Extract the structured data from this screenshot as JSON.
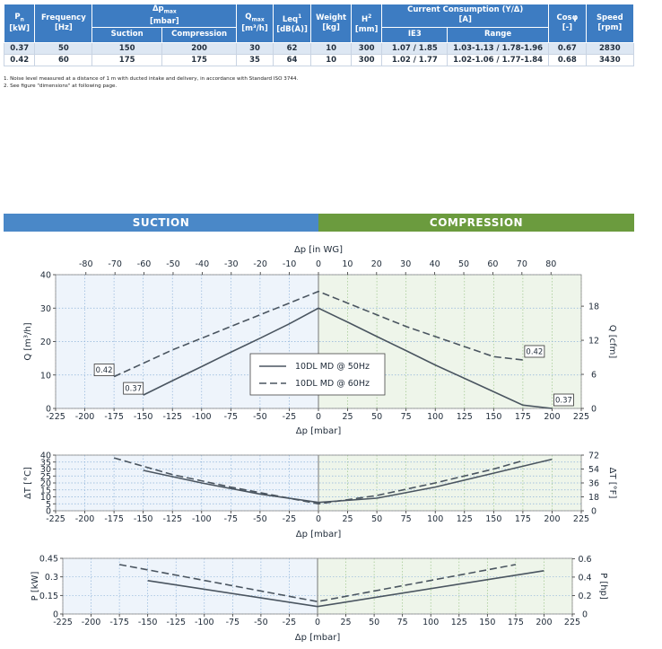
{
  "table": {
    "headers": {
      "pn": "P",
      "pn_sub": "n",
      "pn_unit": "[kW]",
      "frequency": "Frequency",
      "frequency_unit": "[Hz]",
      "dp": "Δp",
      "dp_sub": "max",
      "dp_unit": "[mbar]",
      "suction": "Suction",
      "compression": "Compression",
      "q": "Q",
      "q_sub": "max",
      "q_unit": "[m³/h]",
      "leq": "Leq",
      "leq_sup": "1",
      "leq_unit": "[dB(A)]",
      "weight": "Weight",
      "weight_unit": "[kg]",
      "h": "H",
      "h_sup": "2",
      "h_unit": "[mm]",
      "current": "Current Consumption (Y/Δ)",
      "current_unit": "[A]",
      "ie3": "IE3",
      "range": "Range",
      "cos": "Cosφ",
      "cos_unit": "[-]",
      "speed": "Speed",
      "speed_unit": "[rpm]"
    },
    "rows": [
      [
        "0.37",
        "50",
        "150",
        "200",
        "30",
        "62",
        "10",
        "300",
        "1.07 / 1.85",
        "1.03-1.13 / 1.78-1.96",
        "0.67",
        "2830"
      ],
      [
        "0.42",
        "60",
        "175",
        "175",
        "35",
        "64",
        "10",
        "300",
        "1.02 / 1.77",
        "1.02-1.06 / 1.77-1.84",
        "0.68",
        "3430"
      ]
    ]
  },
  "notes": [
    "1.   Noise level measured at a distance of 1 m with ducted intake and delivery, in accordance with Standard ISO 3744.",
    "2.   See figure \"dimensions\" at following page."
  ],
  "banner": {
    "suction": "SUCTION",
    "compression": "COMPRESSION"
  },
  "colors": {
    "suction_bg": "#eef4fb",
    "compression_bg": "#eef5ea",
    "curve": "#4a5560",
    "grid": "#8fb3d9",
    "grid_green": "#9cc58a"
  },
  "legend": {
    "solid": "10DL MD @ 50Hz",
    "dashed": "10DL MD @ 60Hz"
  },
  "chart_data": [
    {
      "type": "line",
      "xlabel": "Δp [mbar]",
      "x2label": "Δp [in WG]",
      "ylabel": "Q [m³/h]",
      "y2label": "Q [cfm]",
      "xlim": [
        -225,
        225
      ],
      "xticks": [
        -225,
        -200,
        -175,
        -150,
        -125,
        -100,
        -75,
        -50,
        -25,
        0,
        25,
        50,
        75,
        100,
        125,
        150,
        175,
        200,
        225
      ],
      "x2ticks": [
        -80,
        -70,
        -60,
        -50,
        -40,
        -30,
        -20,
        -10,
        0,
        10,
        20,
        30,
        40,
        50,
        60,
        70,
        80
      ],
      "ylim": [
        0,
        40
      ],
      "yticks": [
        0,
        10,
        20,
        30,
        40
      ],
      "y2ticks": [
        0,
        6,
        12,
        18
      ],
      "y2_per_y": 0.5886,
      "series": [
        {
          "name": "10DL MD @ 50Hz",
          "style": "solid",
          "x": [
            -150,
            -125,
            -100,
            -75,
            -50,
            -25,
            0,
            25,
            50,
            75,
            100,
            125,
            150,
            175,
            200
          ],
          "y": [
            4,
            8.3,
            12.5,
            16.8,
            21,
            25.3,
            30,
            25.8,
            21.5,
            17.3,
            13,
            9,
            5,
            1,
            0
          ],
          "labels": [
            {
              "x": -150,
              "y": 4,
              "text": "0.37"
            },
            {
              "x": 200,
              "y": 0,
              "text": "0.37"
            }
          ]
        },
        {
          "name": "10DL MD @ 60Hz",
          "style": "dashed",
          "x": [
            -175,
            -150,
            -125,
            -100,
            -75,
            -50,
            -25,
            0,
            25,
            50,
            75,
            100,
            125,
            150,
            175
          ],
          "y": [
            9.5,
            13.5,
            17.5,
            21,
            24.5,
            28,
            31.5,
            35,
            31.5,
            28,
            24.5,
            21.5,
            18.5,
            15.5,
            14.5
          ],
          "labels": [
            {
              "x": -175,
              "y": 9.5,
              "text": "0.42"
            },
            {
              "x": 175,
              "y": 14.5,
              "text": "0.42"
            }
          ]
        }
      ]
    },
    {
      "type": "line",
      "xlabel": "Δp [mbar]",
      "ylabel": "ΔT [°C]",
      "y2label": "ΔT [°F]",
      "xlim": [
        -225,
        225
      ],
      "xticks": [
        -225,
        -200,
        -175,
        -150,
        -125,
        -100,
        -75,
        -50,
        -25,
        0,
        25,
        50,
        75,
        100,
        125,
        150,
        175,
        200,
        225
      ],
      "ylim": [
        0,
        40
      ],
      "yticks": [
        0,
        5,
        10,
        15,
        20,
        25,
        30,
        35,
        40
      ],
      "y2ticks": [
        0,
        18,
        36,
        54,
        72
      ],
      "y2_per_y": 1.8,
      "series": [
        {
          "name": "10DL MD @ 50Hz",
          "style": "solid",
          "x": [
            -150,
            -100,
            -50,
            0,
            50,
            100,
            150,
            200
          ],
          "y": [
            29,
            20,
            12,
            6,
            9,
            17,
            27,
            37
          ]
        },
        {
          "name": "10DL MD @ 60Hz",
          "style": "dashed",
          "x": [
            -175,
            -125,
            -75,
            -25,
            0,
            50,
            100,
            150,
            175
          ],
          "y": [
            38,
            26,
            17,
            9,
            5,
            11,
            20,
            30,
            36
          ]
        }
      ]
    },
    {
      "type": "line",
      "xlabel": "Δp [mbar]",
      "ylabel": "P [kW]",
      "y2label": "P [hp]",
      "xlim": [
        -225,
        225
      ],
      "xticks": [
        -225,
        -200,
        -175,
        -150,
        -125,
        -100,
        -75,
        -50,
        -25,
        0,
        25,
        50,
        75,
        100,
        125,
        150,
        175,
        200,
        225
      ],
      "ylim": [
        0,
        0.45
      ],
      "yticks": [
        0,
        0.15,
        0.3,
        0.45
      ],
      "yticklabels": [
        "0",
        "0.15",
        "0.3",
        "0.45"
      ],
      "y2ticks": [
        0,
        0.2,
        0.4,
        0.6
      ],
      "y2ticklabels": [
        "0",
        "0.2",
        "0.4",
        "0.6"
      ],
      "y2_per_y": 1.341,
      "series": [
        {
          "name": "10DL MD @ 50Hz",
          "style": "solid",
          "x": [
            -150,
            0,
            200
          ],
          "y": [
            0.27,
            0.06,
            0.35
          ]
        },
        {
          "name": "10DL MD @ 60Hz",
          "style": "dashed",
          "x": [
            -175,
            0,
            175
          ],
          "y": [
            0.4,
            0.1,
            0.4
          ]
        }
      ]
    }
  ]
}
